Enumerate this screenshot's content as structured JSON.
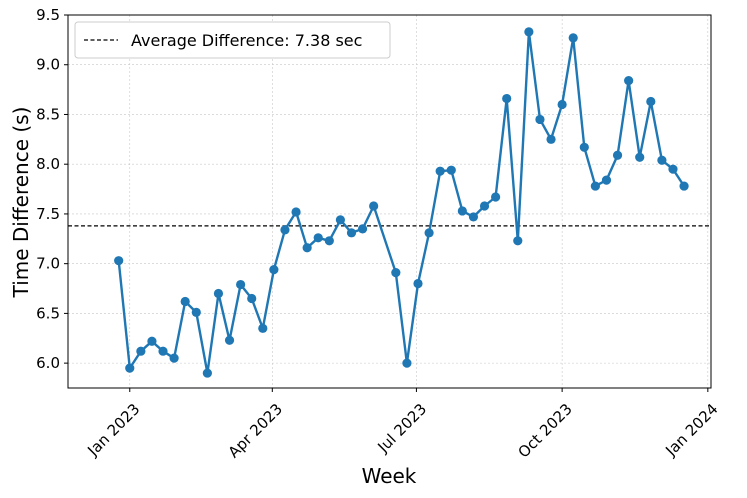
{
  "chart_data": {
    "type": "line",
    "title": "",
    "xlabel": "Week",
    "ylabel": "Time Difference (s)",
    "xlim": [
      "2022-11-23",
      "2024-01-03"
    ],
    "ylim": [
      5.75,
      9.5
    ],
    "grid": true,
    "legend_position": "top-left",
    "y_ticks": [
      "6.0",
      "6.5",
      "7.0",
      "7.5",
      "8.0",
      "8.5",
      "9.0",
      "9.5"
    ],
    "x_ticks": [
      {
        "label": "Jan 2023",
        "date": "2023-01-01"
      },
      {
        "label": "Apr 2023",
        "date": "2023-04-01"
      },
      {
        "label": "Jul 2023",
        "date": "2023-07-01"
      },
      {
        "label": "Oct 2023",
        "date": "2023-10-01"
      },
      {
        "label": "Jan 2024",
        "date": "2024-01-01"
      }
    ],
    "reference_line": {
      "label": "Average Difference: 7.38 sec",
      "value": 7.38,
      "color": "#000000"
    },
    "series": [
      {
        "name": "",
        "color": "#1f77b4",
        "x": [
          "2022-12-25",
          "2023-01-01",
          "2023-01-08",
          "2023-01-15",
          "2023-01-22",
          "2023-01-29",
          "2023-02-05",
          "2023-02-12",
          "2023-02-19",
          "2023-02-26",
          "2023-03-05",
          "2023-03-12",
          "2023-03-19",
          "2023-03-26",
          "2023-04-02",
          "2023-04-09",
          "2023-04-16",
          "2023-04-23",
          "2023-04-30",
          "2023-05-07",
          "2023-05-14",
          "2023-05-21",
          "2023-05-28",
          "2023-06-04",
          "2023-06-18",
          "2023-06-25",
          "2023-07-02",
          "2023-07-09",
          "2023-07-16",
          "2023-07-23",
          "2023-07-30",
          "2023-08-06",
          "2023-08-13",
          "2023-08-20",
          "2023-08-27",
          "2023-09-03",
          "2023-09-10",
          "2023-09-17",
          "2023-09-24",
          "2023-10-01",
          "2023-10-08",
          "2023-10-15",
          "2023-10-22",
          "2023-10-29",
          "2023-11-05",
          "2023-11-12",
          "2023-11-19",
          "2023-11-26",
          "2023-12-03",
          "2023-12-10",
          "2023-12-17"
        ],
        "values": [
          7.03,
          5.95,
          6.12,
          6.22,
          6.12,
          6.05,
          6.62,
          6.51,
          5.9,
          6.7,
          6.23,
          6.79,
          6.65,
          6.35,
          6.94,
          7.34,
          7.52,
          7.16,
          7.26,
          7.23,
          7.44,
          7.31,
          7.35,
          7.58,
          6.91,
          6.0,
          6.8,
          7.31,
          7.93,
          7.94,
          7.53,
          7.47,
          7.58,
          7.67,
          8.66,
          7.23,
          9.33,
          8.45,
          8.25,
          8.6,
          9.27,
          8.17,
          7.78,
          7.84,
          8.09,
          8.84,
          8.07,
          8.63,
          8.04,
          7.95,
          7.78
        ]
      }
    ]
  }
}
